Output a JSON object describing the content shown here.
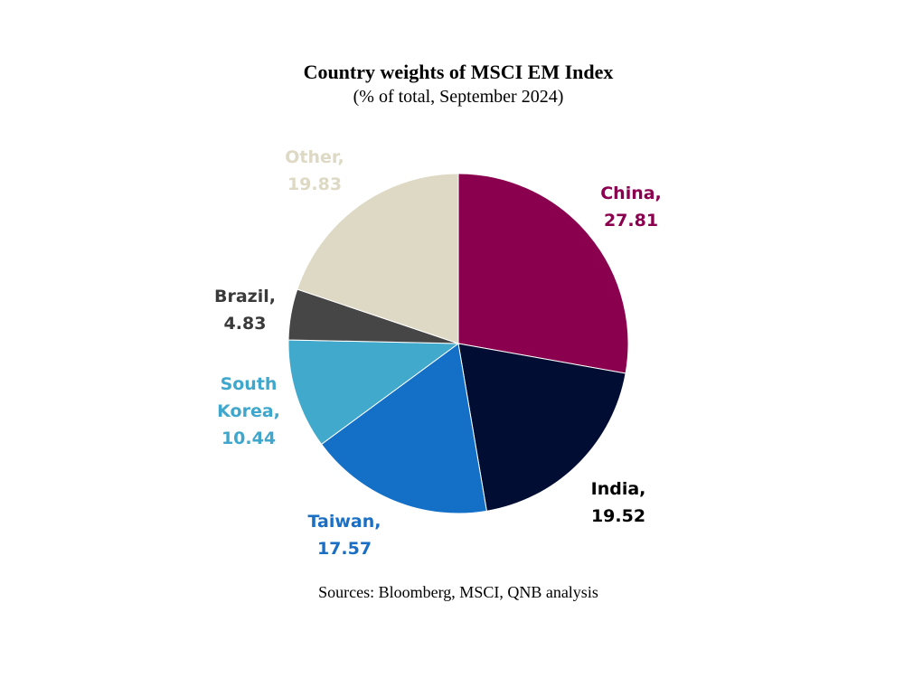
{
  "chart_data": {
    "type": "pie",
    "title": "Country weights of MSCI EM Index",
    "subtitle": "(% of total, September 2024)",
    "source": "Sources: Bloomberg, MSCI, QNB analysis",
    "slices": [
      {
        "label": "China",
        "value": 27.81,
        "color": "#8a004f",
        "label_color": "#8a004f",
        "label_lines": [
          "China,",
          "27.81"
        ]
      },
      {
        "label": "India",
        "value": 19.52,
        "color": "#020d33",
        "label_color": "#000000",
        "label_lines": [
          "India,",
          "19.52"
        ]
      },
      {
        "label": "Taiwan",
        "value": 17.57,
        "color": "#1370c6",
        "label_color": "#1a6fc4",
        "label_lines": [
          "Taiwan,",
          "17.57"
        ]
      },
      {
        "label": "South Korea",
        "value": 10.44,
        "color": "#41a9cb",
        "label_color": "#3fa7cc",
        "label_lines": [
          "South",
          "Korea,",
          "10.44"
        ]
      },
      {
        "label": "Brazil",
        "value": 4.83,
        "color": "#464646",
        "label_color": "#3a3a3a",
        "label_lines": [
          "Brazil,",
          "4.83"
        ]
      },
      {
        "label": "Other",
        "value": 19.83,
        "color": "#ddd9c4",
        "label_color": "#ddd9c4",
        "label_lines": [
          "Other,",
          "19.83"
        ]
      }
    ]
  }
}
